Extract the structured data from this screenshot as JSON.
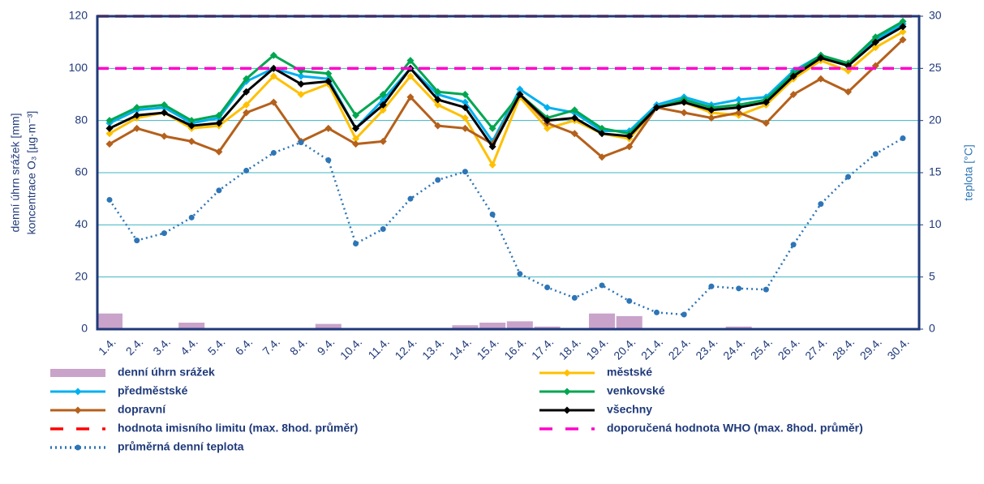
{
  "chart_data": {
    "type": "line",
    "categories": [
      "1.4.",
      "2.4.",
      "3.4.",
      "4.4.",
      "5.4.",
      "6.4.",
      "7.4.",
      "8.4.",
      "9.4.",
      "10.4.",
      "11.4.",
      "12.4.",
      "13.4.",
      "14.4.",
      "15.4.",
      "16.4.",
      "17.4.",
      "18.4.",
      "19.4.",
      "20.4.",
      "21.4.",
      "22.4.",
      "23.4.",
      "24.4.",
      "25.4.",
      "26.4.",
      "27.4.",
      "28.4.",
      "29.4.",
      "30.4."
    ],
    "ylabel": [
      "denní úhrn srážek [mm]",
      "koncentrace O₃ [µg·m⁻³]"
    ],
    "y2label": "teplota [°C]",
    "ylim": [
      0,
      120
    ],
    "yticks": [
      0,
      20,
      40,
      60,
      80,
      100,
      120
    ],
    "y2lim": [
      0,
      30
    ],
    "y2ticks": [
      0,
      5,
      10,
      15,
      20,
      25,
      30
    ],
    "grid": true,
    "series": [
      {
        "name": "denní úhrn srážek",
        "color": "#c9a3c9",
        "style": "bar",
        "values": [
          6,
          0,
          0,
          2.5,
          0,
          0,
          0,
          0,
          2,
          0,
          0,
          0,
          0,
          1.5,
          2.5,
          3,
          1,
          0,
          6,
          5,
          0,
          0,
          0,
          1,
          0,
          0,
          0,
          0,
          0,
          0
        ]
      },
      {
        "name": "městské",
        "color": "#ffc000",
        "style": "line",
        "values": [
          75,
          81,
          83,
          77,
          78,
          86,
          97,
          90,
          94,
          73,
          84,
          97,
          86,
          81,
          63,
          89,
          77,
          80,
          75,
          73,
          85,
          87,
          83,
          82,
          86,
          96,
          103,
          99,
          108,
          114
        ]
      },
      {
        "name": "předměstské",
        "color": "#00b0f0",
        "style": "line",
        "values": [
          79,
          84,
          85,
          79,
          81,
          95,
          100,
          97,
          96,
          77,
          88,
          100,
          90,
          87,
          72,
          92,
          85,
          83,
          76,
          76,
          86,
          89,
          86,
          88,
          89,
          99,
          105,
          101,
          111,
          117
        ]
      },
      {
        "name": "venkovské",
        "color": "#00a651",
        "style": "line",
        "values": [
          80,
          85,
          86,
          80,
          82,
          96,
          105,
          99,
          98,
          82,
          90,
          103,
          91,
          90,
          77,
          90,
          81,
          84,
          77,
          75,
          85,
          88,
          85,
          86,
          88,
          98,
          105,
          102,
          112,
          118
        ]
      },
      {
        "name": "dopravní",
        "color": "#b5601b",
        "style": "line",
        "values": [
          71,
          77,
          74,
          72,
          68,
          83,
          87,
          72,
          77,
          71,
          72,
          89,
          78,
          77,
          71,
          90,
          79,
          75,
          66,
          70,
          85,
          83,
          81,
          83,
          79,
          90,
          96,
          91,
          101,
          111
        ]
      },
      {
        "name": "všechny",
        "color": "#000000",
        "style": "line",
        "values": [
          77,
          82,
          83,
          78,
          79,
          91,
          100,
          94,
          95,
          77,
          86,
          100,
          88,
          85,
          70,
          90,
          80,
          81,
          75,
          74,
          85,
          87,
          84,
          85,
          87,
          97,
          104,
          101,
          110,
          116
        ]
      },
      {
        "name": "hodnota imisního limitu (max. 8hod. průměr)",
        "color": "#ff0000",
        "style": "dashed",
        "value": 120
      },
      {
        "name": "doporučená hodnota WHO (max. 8hod. průměr)",
        "color": "#ff00cc",
        "style": "dashed",
        "value": 100
      },
      {
        "name": "průměrná denní teplota",
        "color": "#2e75b6",
        "style": "dotted",
        "axis": "y2",
        "values": [
          12.4,
          8.5,
          9.2,
          10.7,
          13.3,
          15.2,
          16.9,
          17.9,
          16.2,
          8.2,
          9.6,
          12.5,
          14.3,
          15.1,
          11.0,
          5.3,
          4.0,
          3.0,
          4.2,
          2.7,
          1.6,
          1.4,
          4.1,
          3.9,
          3.8,
          8.1,
          12.0,
          14.6,
          16.8,
          18.3
        ]
      }
    ]
  }
}
